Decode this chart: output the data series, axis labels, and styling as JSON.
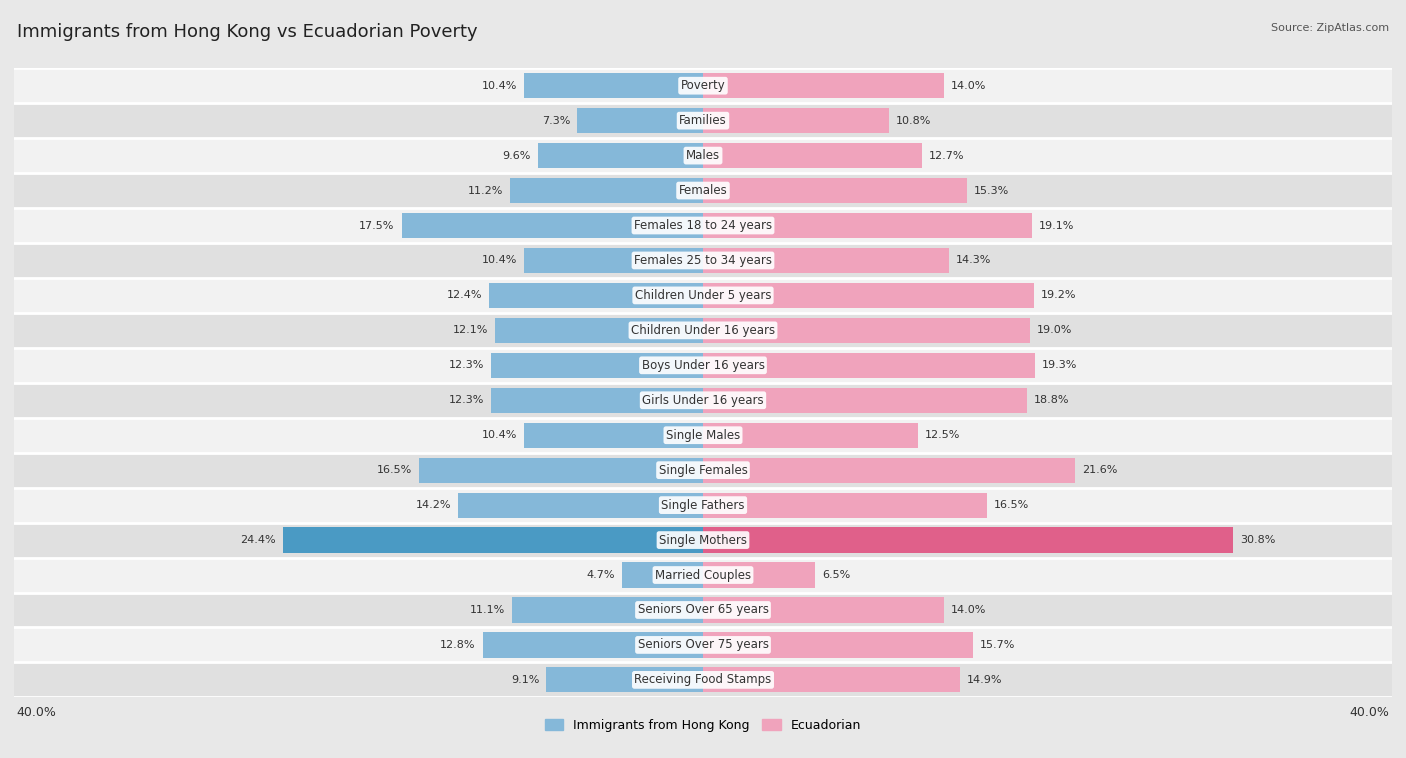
{
  "title": "Immigrants from Hong Kong vs Ecuadorian Poverty",
  "source": "Source: ZipAtlas.com",
  "categories": [
    "Poverty",
    "Families",
    "Males",
    "Females",
    "Females 18 to 24 years",
    "Females 25 to 34 years",
    "Children Under 5 years",
    "Children Under 16 years",
    "Boys Under 16 years",
    "Girls Under 16 years",
    "Single Males",
    "Single Females",
    "Single Fathers",
    "Single Mothers",
    "Married Couples",
    "Seniors Over 65 years",
    "Seniors Over 75 years",
    "Receiving Food Stamps"
  ],
  "left_values": [
    10.4,
    7.3,
    9.6,
    11.2,
    17.5,
    10.4,
    12.4,
    12.1,
    12.3,
    12.3,
    10.4,
    16.5,
    14.2,
    24.4,
    4.7,
    11.1,
    12.8,
    9.1
  ],
  "right_values": [
    14.0,
    10.8,
    12.7,
    15.3,
    19.1,
    14.3,
    19.2,
    19.0,
    19.3,
    18.8,
    12.5,
    21.6,
    16.5,
    30.8,
    6.5,
    14.0,
    15.7,
    14.9
  ],
  "left_color": "#85b8d9",
  "right_color": "#f0a3bc",
  "single_mothers_left_color": "#4a9ac4",
  "single_mothers_right_color": "#e0608a",
  "background_color": "#e8e8e8",
  "row_color_odd": "#f2f2f2",
  "row_color_even": "#e0e0e0",
  "axis_max": 40.0,
  "legend_left": "Immigrants from Hong Kong",
  "legend_right": "Ecuadorian",
  "title_fontsize": 13,
  "label_fontsize": 8.5,
  "value_fontsize": 8
}
